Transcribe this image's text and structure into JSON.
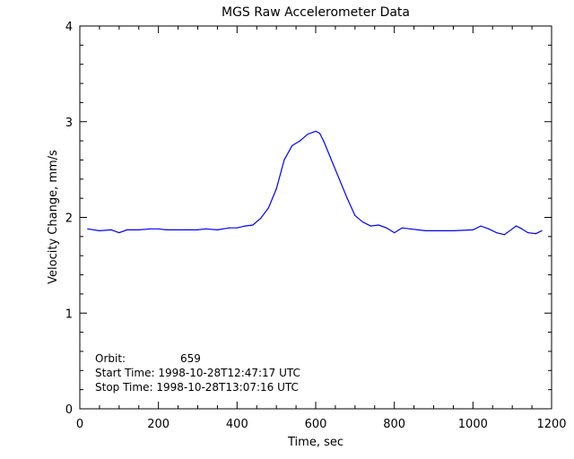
{
  "chart_data": {
    "type": "line",
    "title": "MGS Raw Accelerometer Data",
    "xlabel": "Time, sec",
    "ylabel": "Velocity Change, mm/s",
    "xlim": [
      0,
      1200
    ],
    "ylim": [
      0,
      4
    ],
    "xticks": [
      "0",
      "200",
      "400",
      "600",
      "800",
      "1000",
      "1200"
    ],
    "yticks": [
      "0",
      "1",
      "2",
      "3",
      "4"
    ],
    "grid": false,
    "line_color": "#0000ff",
    "series": [
      {
        "x": [
          20,
          50,
          80,
          100,
          120,
          150,
          180,
          200,
          220,
          250,
          280,
          300,
          320,
          350,
          380,
          400,
          420,
          440,
          460,
          480,
          500,
          520,
          540,
          560,
          580,
          600,
          610,
          620,
          640,
          660,
          680,
          700,
          720,
          740,
          760,
          780,
          800,
          820,
          840,
          860,
          880,
          900,
          950,
          1000,
          1020,
          1040,
          1060,
          1080,
          1100,
          1110,
          1120,
          1140,
          1160,
          1175
        ],
        "y": [
          1.88,
          1.86,
          1.87,
          1.84,
          1.87,
          1.87,
          1.88,
          1.88,
          1.87,
          1.87,
          1.87,
          1.87,
          1.88,
          1.87,
          1.89,
          1.89,
          1.91,
          1.92,
          1.99,
          2.1,
          2.3,
          2.6,
          2.75,
          2.8,
          2.87,
          2.9,
          2.88,
          2.8,
          2.6,
          2.4,
          2.2,
          2.02,
          1.95,
          1.91,
          1.92,
          1.89,
          1.84,
          1.89,
          1.88,
          1.87,
          1.86,
          1.86,
          1.86,
          1.87,
          1.91,
          1.88,
          1.84,
          1.82,
          1.88,
          1.91,
          1.89,
          1.84,
          1.83,
          1.86
        ]
      }
    ],
    "annotations": {
      "orbit_label": "Orbit:",
      "orbit_value": "659",
      "start_time": "Start Time: 1998-10-28T12:47:17 UTC",
      "stop_time": "Stop Time: 1998-10-28T13:07:16 UTC"
    }
  }
}
